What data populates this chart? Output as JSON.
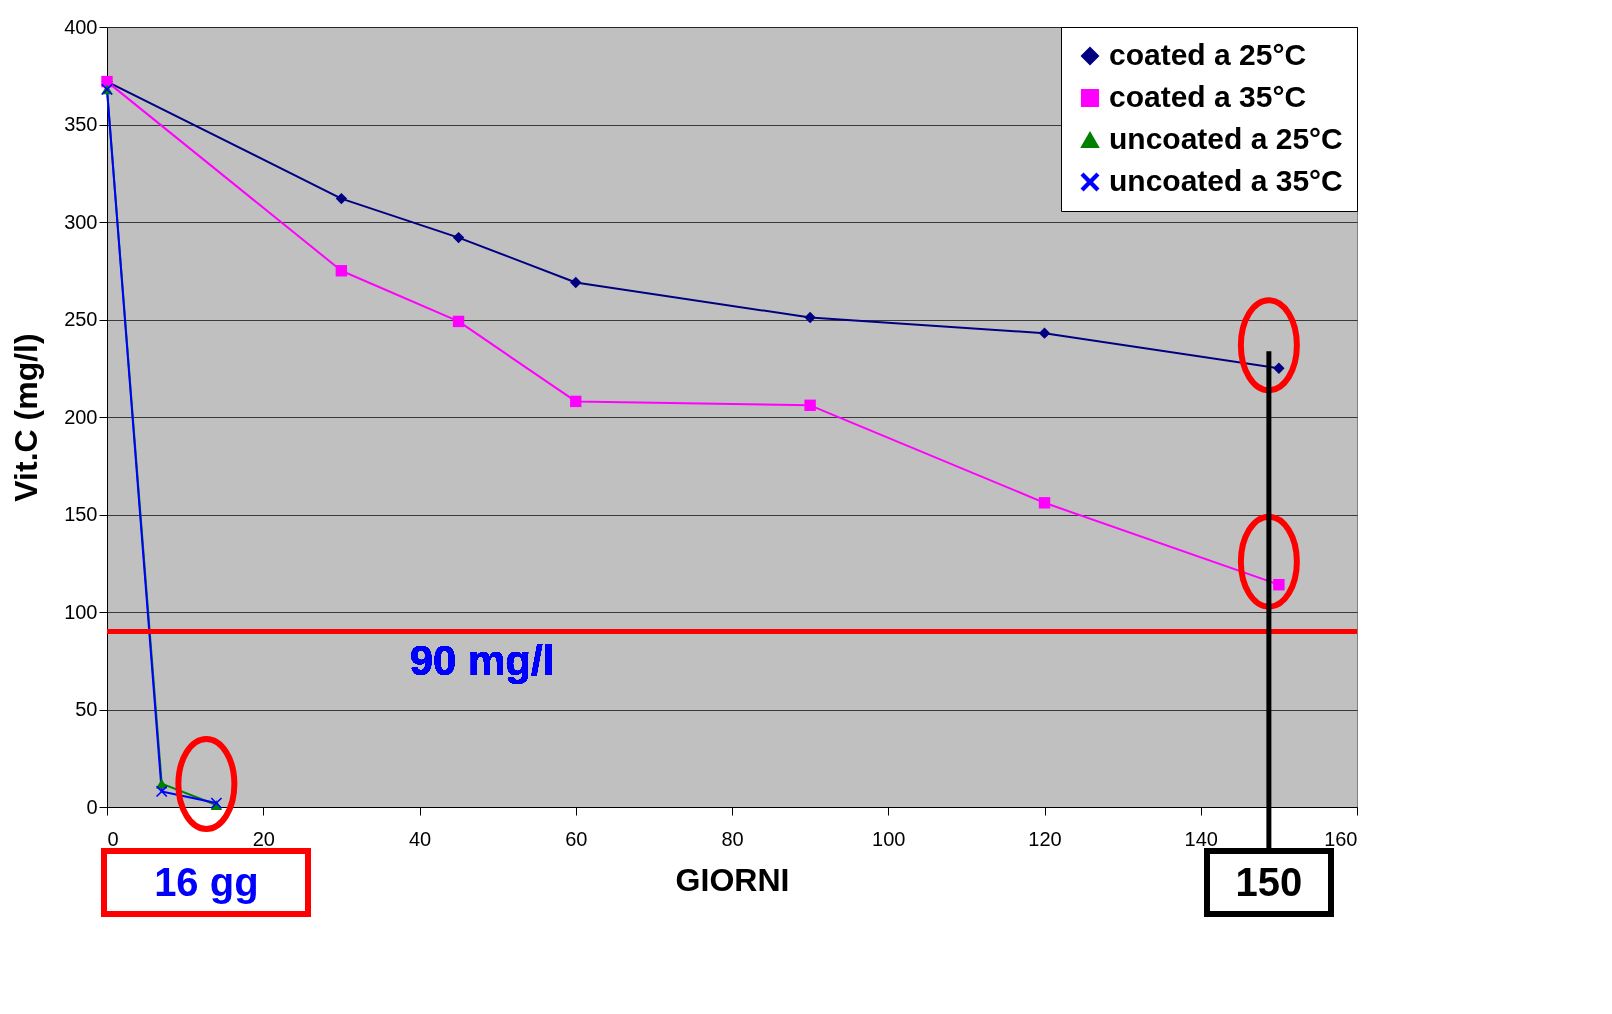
{
  "chart_data": {
    "type": "line",
    "xlabel": "GIORNI",
    "ylabel": "Vit.C (mg/l)",
    "xlim": [
      0,
      160
    ],
    "xticks": [
      0,
      20,
      40,
      60,
      80,
      100,
      120,
      140,
      160
    ],
    "ylim": [
      0,
      400
    ],
    "yticks": [
      0,
      50,
      100,
      150,
      200,
      250,
      300,
      350,
      400
    ],
    "grid": "y",
    "legend": "top right",
    "series": [
      {
        "name": "coated a 25°C",
        "color": "#000080",
        "marker": "diamond",
        "x": [
          0,
          30,
          45,
          60,
          90,
          120,
          150
        ],
        "values": [
          372,
          312,
          292,
          269,
          251,
          243,
          225
        ]
      },
      {
        "name": "coated a 35°C",
        "color": "#ff00ff",
        "marker": "square",
        "x": [
          0,
          30,
          45,
          60,
          90,
          120,
          150
        ],
        "values": [
          372,
          275,
          249,
          208,
          206,
          156,
          114
        ]
      },
      {
        "name": "uncoated a 25°C",
        "color": "#008000",
        "marker": "triangle",
        "x": [
          0,
          7,
          14
        ],
        "values": [
          368,
          12,
          1
        ]
      },
      {
        "name": "uncoated a 35°C",
        "color": "#0000ff",
        "marker": "cross",
        "x": [
          0,
          7,
          14
        ],
        "values": [
          368,
          8,
          2
        ]
      }
    ],
    "ref_lines": [
      {
        "axis": "y",
        "value": 90,
        "label": "90 mg/l",
        "color": "#ff0000"
      }
    ],
    "annotations": [
      {
        "text": "16 gg",
        "x": 14,
        "y": 0
      },
      "150"
    ]
  }
}
